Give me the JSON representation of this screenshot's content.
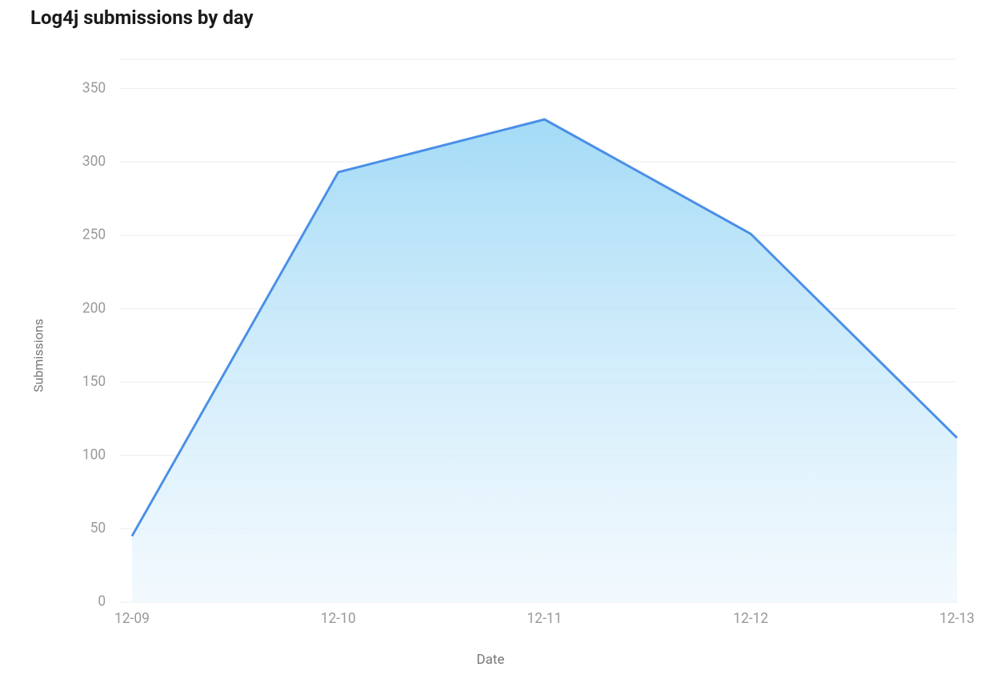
{
  "title": "Log4j submissions by day",
  "y_axis_label": "Submissions",
  "x_axis_label": "Date",
  "chart": {
    "type": "area",
    "x_labels": [
      "12-09",
      "12-10",
      "12-11",
      "12-12",
      "12-13"
    ],
    "values": [
      45,
      293,
      329,
      251,
      112
    ],
    "y_ticks": [
      0,
      50,
      100,
      150,
      200,
      250,
      300,
      350
    ],
    "y_domain_max": 370,
    "line_color": "#4a8fe7",
    "line_width": 3,
    "fill_gradient_top": "#9fd9f6",
    "fill_gradient_bottom": "#eaf6fd",
    "fill_opacity": 0.95,
    "grid_color": "#eeeeee",
    "background_color": "#ffffff",
    "tick_label_color": "#999999",
    "tick_fontsize": 18,
    "axis_title_color": "#777777",
    "axis_title_fontsize": 16,
    "title_color": "#1a1a1a",
    "title_fontsize": 24,
    "title_fontweight": 700
  }
}
